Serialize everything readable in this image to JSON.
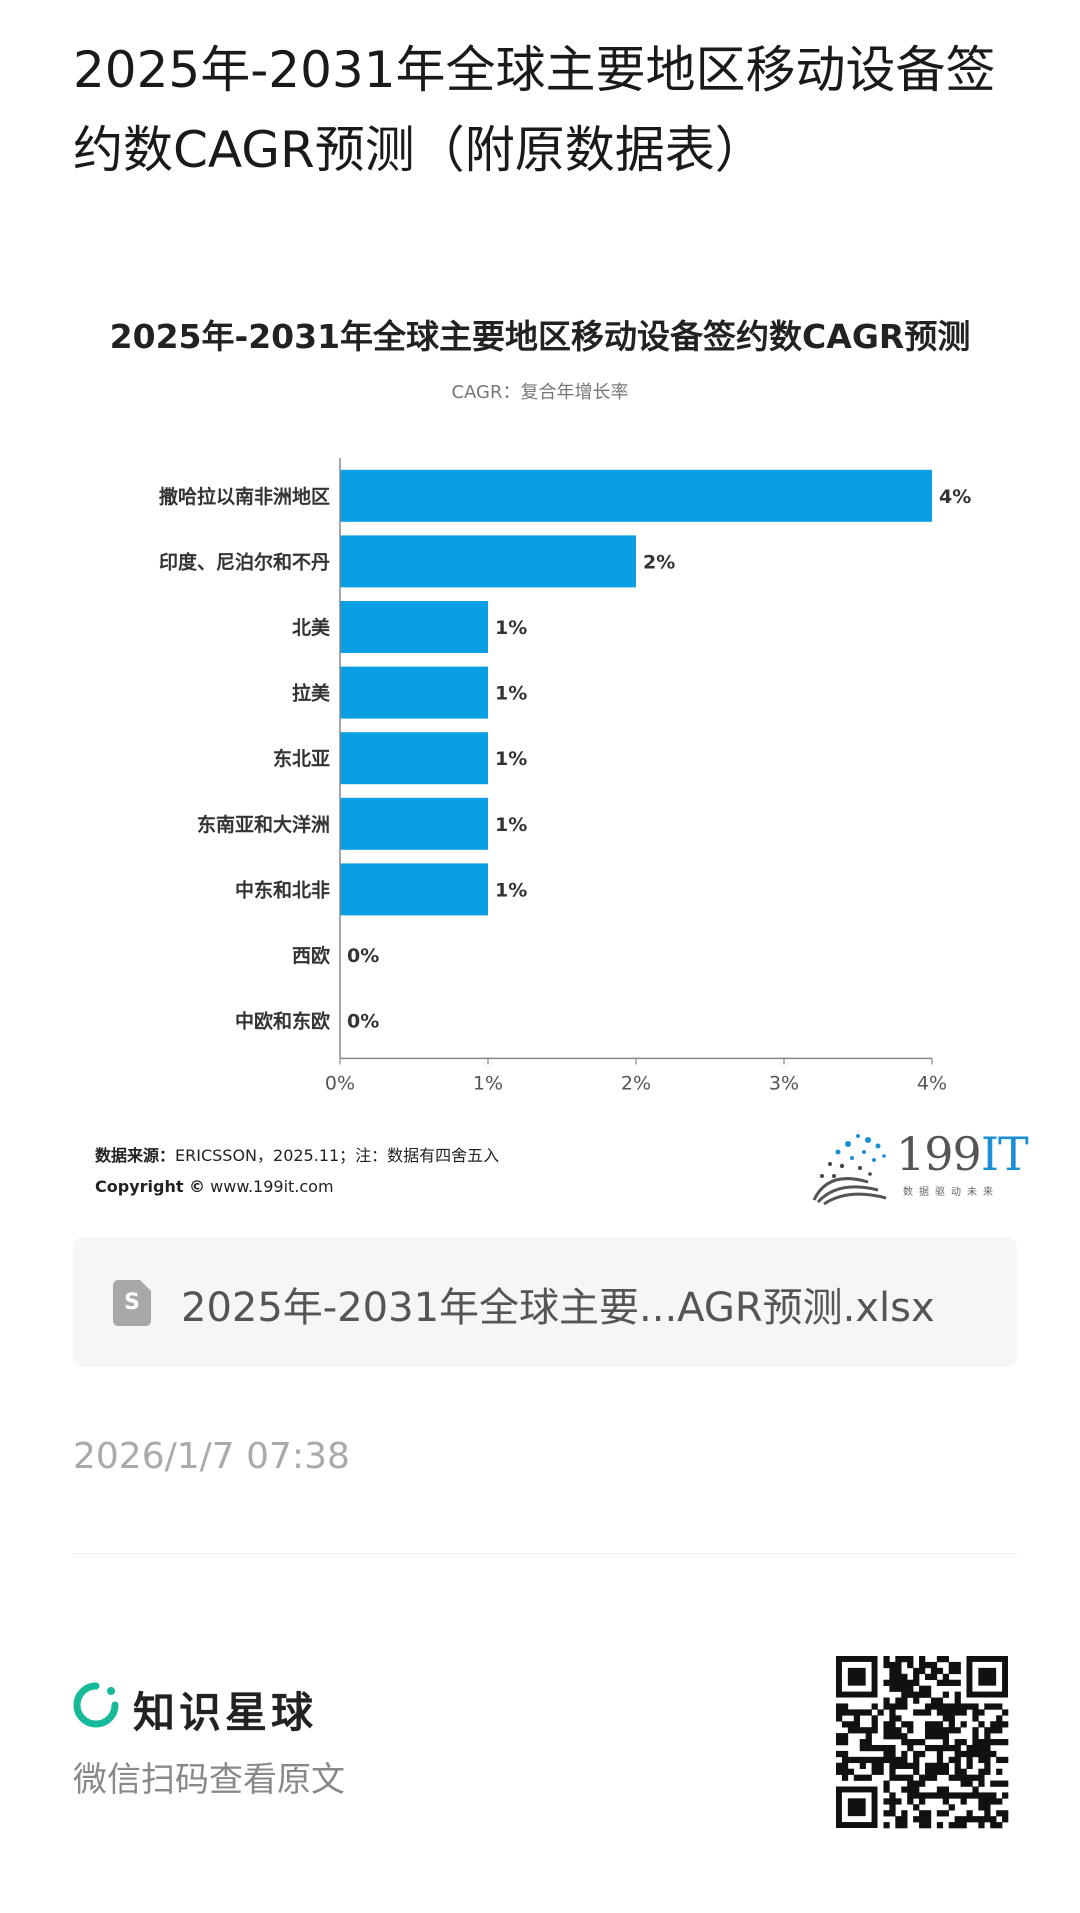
{
  "post": {
    "title": "2025年-2031年全球主要地区移动设备签约数CAGR预测（附原数据表）"
  },
  "chart_data": {
    "type": "bar",
    "orientation": "horizontal",
    "title": "2025年-2031年全球主要地区移动设备签约数CAGR预测",
    "subtitle": "CAGR：复合年增长率",
    "categories": [
      "撒哈拉以南非洲地区",
      "印度、尼泊尔和不丹",
      "北美",
      "拉美",
      "东北亚",
      "东南亚和大洋洲",
      "中东和北非",
      "西欧",
      "中欧和东欧"
    ],
    "values": [
      4,
      2,
      1,
      1,
      1,
      1,
      1,
      0,
      0
    ],
    "data_labels": [
      "4%",
      "2%",
      "1%",
      "1%",
      "1%",
      "1%",
      "1%",
      "0%",
      "0%"
    ],
    "xlim": [
      0,
      4
    ],
    "x_ticks": [
      "0%",
      "1%",
      "2%",
      "3%",
      "4%"
    ],
    "bar_color": "#0a9fe3",
    "grid": false,
    "legend": "none"
  },
  "source": {
    "label": "数据来源：",
    "text": "ERICSSON，2025.11；注：数据有四舍五入",
    "copyright_label": "Copyright ©",
    "copyright_url": "www.199it.com"
  },
  "logo": {
    "number": "199",
    "it": "IT",
    "tagline": "数据驱动未来"
  },
  "file": {
    "icon_letter": "S",
    "name": "2025年-2031年全球主要...AGR预测.xlsx"
  },
  "timestamp": "2026/1/7 07:38",
  "footer": {
    "brand_name": "知识星球",
    "cta": "微信扫码查看原文"
  }
}
